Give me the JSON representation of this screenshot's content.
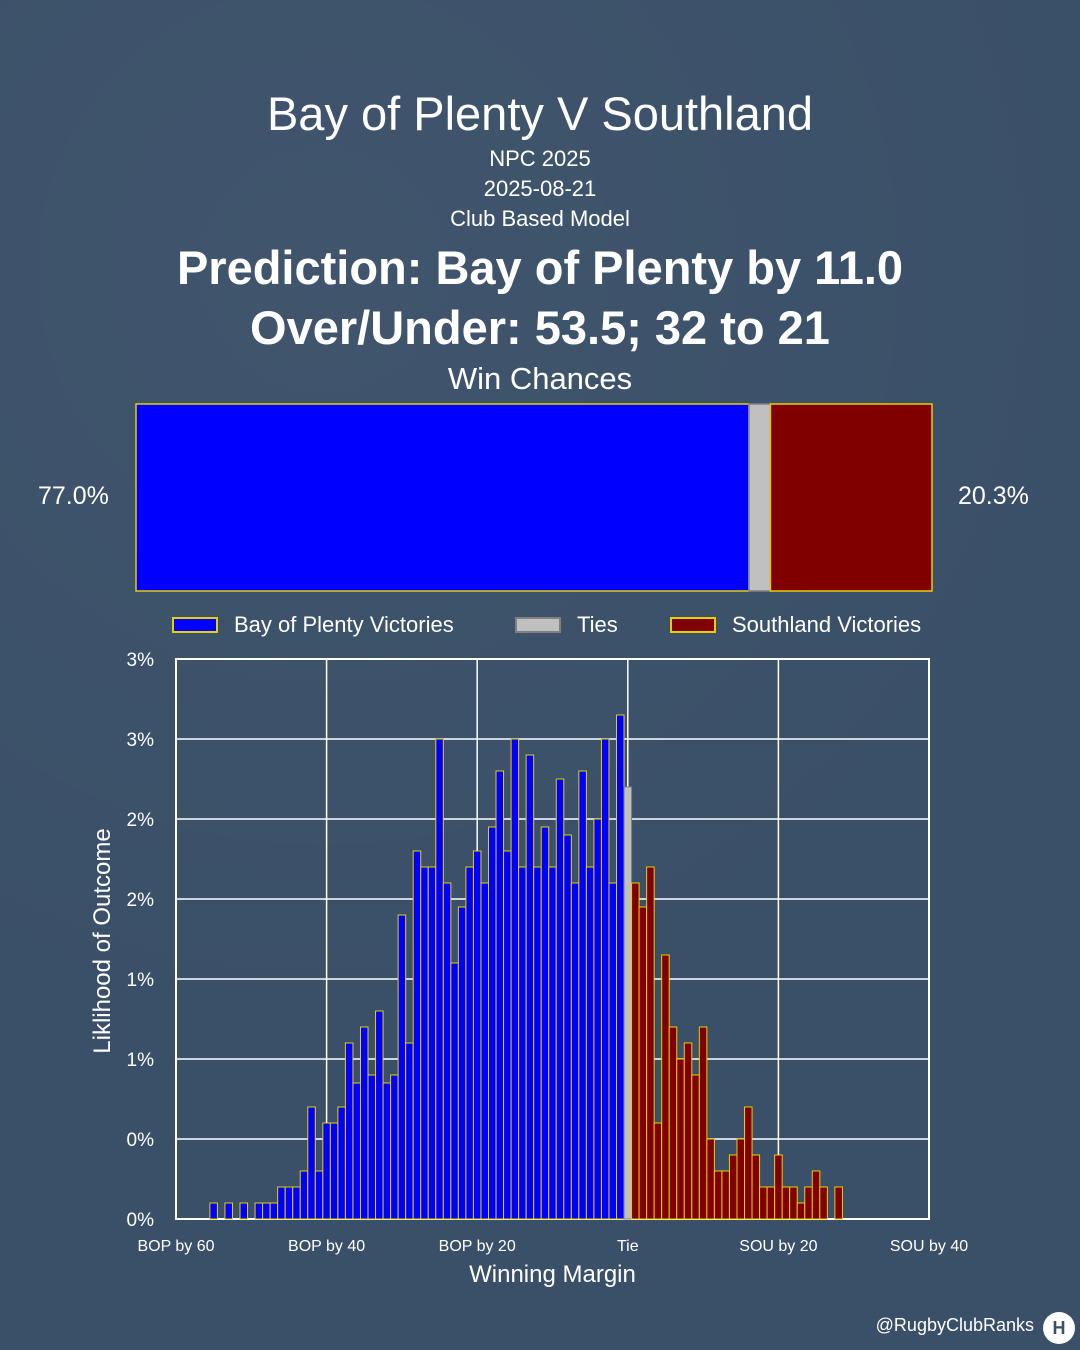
{
  "title": "Bay of Plenty V Southland",
  "competition": "NPC 2025",
  "date": "2025-08-21",
  "model": "Club Based Model",
  "prediction": "Prediction: Bay of Plenty by 11.0",
  "over_under": "Over/Under: 53.5; 32 to 21",
  "win_chances": {
    "title": "Win Chances",
    "home_pct_label": "77.0%",
    "away_pct_label": "20.3%",
    "home": 77.0,
    "tie": 2.7,
    "away": 20.3
  },
  "legend": {
    "home": "Bay of Plenty Victories",
    "tie": "Ties",
    "away": "Southland Victories"
  },
  "colors": {
    "home": "#0000ff",
    "tie": "#c0c0c0",
    "away": "#800000",
    "edge": "#e6d000",
    "background": "#3a5068"
  },
  "credit": "@RugbyClubRanks",
  "chart_data": {
    "type": "bar",
    "xlabel": "Winning Margin",
    "ylabel": "Liklihood of Outcome",
    "xlim": [
      -60,
      40
    ],
    "ylim": [
      0,
      3.5
    ],
    "x_tick_values": [
      -60,
      -40,
      -20,
      0,
      20,
      40
    ],
    "x_tick_labels": [
      "BOP by 60",
      "BOP by 40",
      "BOP by 20",
      "Tie",
      "SOU by 20",
      "SOU by 40"
    ],
    "y_tick_values": [
      0,
      0.5,
      1,
      1.5,
      2,
      2.5,
      3,
      3.5
    ],
    "y_tick_labels": [
      "0%",
      "0%",
      "1%",
      "1%",
      "2%",
      "2%",
      "3%",
      "3%"
    ],
    "grid": true,
    "series": [
      {
        "name": "Bay of Plenty Victories",
        "x": [
          -55,
          -53,
          -51,
          -49,
          -48,
          -47,
          -46,
          -45,
          -44,
          -43,
          -42,
          -41,
          -40,
          -39,
          -38,
          -37,
          -36,
          -35,
          -34,
          -33,
          -32,
          -31,
          -30,
          -29,
          -28,
          -27,
          -26,
          -25,
          -24,
          -23,
          -22,
          -21,
          -20,
          -19,
          -18,
          -17,
          -16,
          -15,
          -14,
          -13,
          -12,
          -11,
          -10,
          -9,
          -8,
          -7,
          -6,
          -5,
          -4,
          -3,
          -2,
          -1
        ],
        "values": [
          0.1,
          0.1,
          0.1,
          0.1,
          0.1,
          0.1,
          0.2,
          0.2,
          0.2,
          0.3,
          0.7,
          0.3,
          0.6,
          0.6,
          0.7,
          1.1,
          0.85,
          1.2,
          0.9,
          1.3,
          0.85,
          0.9,
          1.9,
          1.1,
          2.3,
          2.2,
          2.2,
          3.0,
          2.1,
          1.6,
          1.95,
          2.2,
          2.3,
          2.1,
          2.45,
          2.8,
          2.3,
          3.0,
          2.2,
          2.9,
          2.2,
          2.45,
          2.2,
          2.75,
          2.4,
          2.1,
          2.8,
          2.2,
          2.5,
          3.0,
          2.1,
          3.15
        ]
      },
      {
        "name": "Ties",
        "x": [
          0
        ],
        "values": [
          2.7
        ]
      },
      {
        "name": "Southland Victories",
        "x": [
          1,
          2,
          3,
          4,
          5,
          6,
          7,
          8,
          9,
          10,
          11,
          12,
          13,
          14,
          15,
          16,
          17,
          18,
          19,
          20,
          21,
          22,
          23,
          24,
          25,
          26,
          27,
          28
        ],
        "values": [
          2.1,
          1.95,
          2.2,
          0.6,
          1.65,
          1.2,
          1.0,
          1.1,
          0.9,
          1.2,
          0.5,
          0.3,
          0.3,
          0.4,
          0.5,
          0.7,
          0.4,
          0.2,
          0.2,
          0.4,
          0.2,
          0.2,
          0.1,
          0.2,
          0.3,
          0.2,
          0,
          0.2
        ]
      }
    ]
  }
}
